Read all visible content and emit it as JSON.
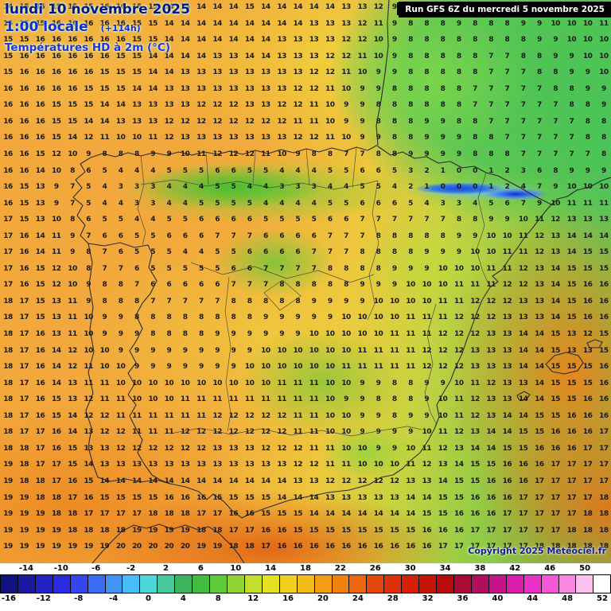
{
  "header": {
    "date_line": "lundi 10 novembre 2025",
    "time_line": "1:00 locale",
    "offset": "(+114h)",
    "variable": "Températures HD à 2m (°C)"
  },
  "run_info": {
    "label": "Run GFS 6Z du mercredi 5 novembre 2025"
  },
  "copyright": "Copyright 2025 Meteociel.fr",
  "map": {
    "grid": {
      "rows": [
        "14 15 15 15 15 15 16 16 15 15 14 14 14 14 14 15 14 14 14 14 14 13 13 12 9 8 8 9 9 8 8 9 9 9 10 10 10 11",
        "15 15 15 16 16 16 16 16 15 15 14 14 14 14 14 14 14 14 14 13 13 13 12 11 9 8 8 8 9 8 8 8 9 9 10 10 10 11",
        "15 15 16 16 16 16 16 16 15 15 14 14 14 14 14 14 14 13 13 13 13 12 12 10 9 8 8 8 8 8 8 8 8 9 9 10 10 10",
        "15 16 16 16 16 16 16 15 15 14 14 14 14 13 13 14 14 13 13 13 12 12 11 10 9 8 8 8 8 8 7 7 8 8 9 9 10 10",
        "15 16 16 16 16 16 15 15 15 14 14 13 13 13 13 13 13 13 13 12 12 11 10 9 9 8 8 8 8 8 7 7 7 8 8 9 9 10",
        "16 16 16 16 16 15 15 15 14 14 13 13 13 13 13 13 13 13 12 12 11 10 9 9 8 8 8 8 8 7 7 7 7 7 8 8 9 9",
        "16 16 16 15 15 15 14 14 13 13 13 13 12 12 12 13 13 12 12 11 10 9 9 8 8 8 8 8 8 7 7 7 7 7 7 8 8 9",
        "16 16 16 15 15 14 14 13 13 13 12 12 12 12 12 12 12 12 11 11 10 9 9 8 8 8 9 9 8 8 7 7 7 7 7 7 8 8",
        "16 16 16 15 14 12 11 10 10 11 12 13 13 13 13 13 13 13 12 12 11 10 9 9 8 8 9 9 9 8 8 7 7 7 7 7 8 8",
        "16 16 15 12 10 9 8 8 8 9 9 10 11 12 12 12 11 10 9 8 8 7 7 8 8 9 9 9 9 8 8 8 7 7 7 7 7 8",
        "16 16 14 10 8 6 5 4 4 4 5 5 5 6 6 5 5 4 4 4 5 5 6 6 5 3 2 1 0 0 1 2 3 6 8 9 9 9",
        "16 15 13 9 7 5 4 3 3 3 4 4 4 5 5 4 4 3 3 3 4 4 5 5 4 2 1 0 0 0 1 2 4 7 9 10 10 10",
        "16 15 13 9 7 5 4 4 3 3 4 4 5 5 5 5 4 4 4 4 5 5 6 6 6 5 4 3 3 4 5 6 7 9 10 11 11 11",
        "17 15 13 10 8 6 5 5 4 4 5 5 6 6 6 6 5 5 5 5 6 6 7 7 7 7 7 7 8 8 9 9 10 11 12 13 13 13",
        "17 16 14 11 9 7 6 6 5 5 6 6 6 7 7 7 6 6 6 6 7 7 7 8 8 8 8 8 9 9 10 10 11 12 13 14 14 14",
        "17 16 14 11 9 8 7 6 5 5 5 4 4 5 5 6 6 6 6 7 7 7 8 8 8 8 9 9 9 10 10 11 11 12 13 14 15 15",
        "17 16 15 12 10 8 7 7 6 5 5 5 5 5 6 6 7 7 7 7 8 8 8 8 9 9 9 10 10 10 11 11 12 13 14 15 15 15",
        "17 16 15 12 10 9 8 8 7 6 6 6 6 6 7 7 7 8 8 8 8 8 9 9 9 10 10 10 11 11 11 12 12 13 14 15 16 16",
        "18 17 15 13 11 9 8 8 8 7 7 7 7 7 8 8 8 8 8 9 9 9 9 10 10 10 10 11 11 12 12 12 13 13 14 15 16 16",
        "18 17 15 13 11 10 9 9 8 8 8 8 8 8 8 8 9 9 9 9 9 10 10 10 10 11 11 11 12 12 12 13 13 13 14 15 16 16",
        "18 17 16 13 11 10 9 9 9 8 8 8 8 9 9 9 9 9 9 10 10 10 10 10 11 11 11 12 12 12 13 13 14 14 15 13 12 15",
        "18 17 16 14 12 10 10 9 9 9 9 9 9 9 9 9 10 10 10 10 10 10 11 11 11 11 12 12 12 13 13 13 14 14 15 13 13 15",
        "18 17 16 14 12 11 10 10 9 9 9 9 9 9 9 10 10 10 10 10 10 11 11 11 11 11 12 12 12 13 13 13 14 14 15 15 15 16",
        "18 17 16 14 13 11 11 10 10 10 10 10 10 10 10 10 10 11 11 11 10 10 9 9 8 8 9 9 10 11 12 13 13 14 15 15 15 16",
        "18 17 16 15 13 12 11 11 10 10 10 11 11 11 11 11 11 11 11 11 10 9 9 8 8 8 9 10 11 12 13 13 14 14 15 15 16 16",
        "18 17 16 15 14 12 12 11 11 11 11 11 11 12 12 12 12 12 11 11 10 10 9 9 8 9 9 10 11 12 13 14 14 15 15 16 16 16",
        "18 17 17 16 14 13 12 12 11 11 11 12 12 12 12 12 12 12 11 11 10 10 9 9 9 9 10 11 12 13 14 14 15 15 16 16 16 17",
        "18 18 17 16 15 13 13 12 12 12 12 12 12 13 13 13 12 12 12 11 11 10 10 9 9 10 11 12 13 14 14 15 15 16 16 16 17 17",
        "19 18 17 17 15 14 13 13 13 13 13 13 13 13 13 13 13 13 12 12 11 11 10 10 10 11 12 13 14 15 15 16 16 16 17 17 17 17",
        "19 18 18 17 16 15 14 14 14 14 14 14 14 14 14 14 14 14 13 13 12 12 12 12 12 13 13 14 15 15 16 16 16 17 17 17 17 17",
        "19 19 18 18 17 16 15 15 15 15 16 16 16 15 15 15 15 14 14 14 13 13 13 13 13 14 14 15 15 16 16 16 17 17 17 17 17 18",
        "19 19 19 18 18 17 17 17 17 18 18 18 17 17 16 16 15 15 15 14 14 14 14 14 14 14 15 15 16 16 16 17 17 17 17 17 18 18",
        "19 19 19 19 18 18 18 18 19 19 19 19 18 18 17 17 16 16 15 15 15 15 15 15 15 15 16 16 16 17 17 17 17 17 17 18 18 18",
        "19 19 19 19 19 19 19 20 20 20 20 20 19 19 18 18 17 16 16 16 16 16 16 16 16 16 16 17 17 17 17 17 17 18 18 18 18 18"
      ]
    }
  },
  "scale": {
    "top_labels": [
      -14,
      -10,
      -6,
      -2,
      2,
      6,
      10,
      14,
      18,
      22,
      26,
      30,
      34,
      38,
      42,
      46,
      50
    ],
    "bottom_labels": [
      -16,
      -12,
      -8,
      -4,
      0,
      4,
      8,
      12,
      16,
      20,
      24,
      28,
      32,
      36,
      40,
      44,
      48,
      52
    ],
    "cell_temp_start": -16,
    "cell_temp_step": 2,
    "colors": [
      "#10127e",
      "#1a1a9e",
      "#2222c0",
      "#2a2ae0",
      "#3346ee",
      "#3a6cf2",
      "#4294f4",
      "#48bcf6",
      "#4cd8d8",
      "#46c89b",
      "#3cb45f",
      "#42bc3e",
      "#5ec93a",
      "#90d433",
      "#c4df2b",
      "#e4e022",
      "#efd01e",
      "#f4bc1a",
      "#f49e16",
      "#f08212",
      "#ec6610",
      "#e6480c",
      "#de3009",
      "#d42007",
      "#c61407",
      "#b60c0c",
      "#aa0a36",
      "#b20e5e",
      "#c61488",
      "#da1eac",
      "#ea32c8",
      "#f458d6",
      "#f988e0",
      "#fcc0ec",
      "#ffffff"
    ]
  },
  "theme": {
    "title_blue": "#001894",
    "accent_blue": "#1e34e0",
    "run_box_bg": "#000000",
    "run_box_text": "#ffffff"
  }
}
